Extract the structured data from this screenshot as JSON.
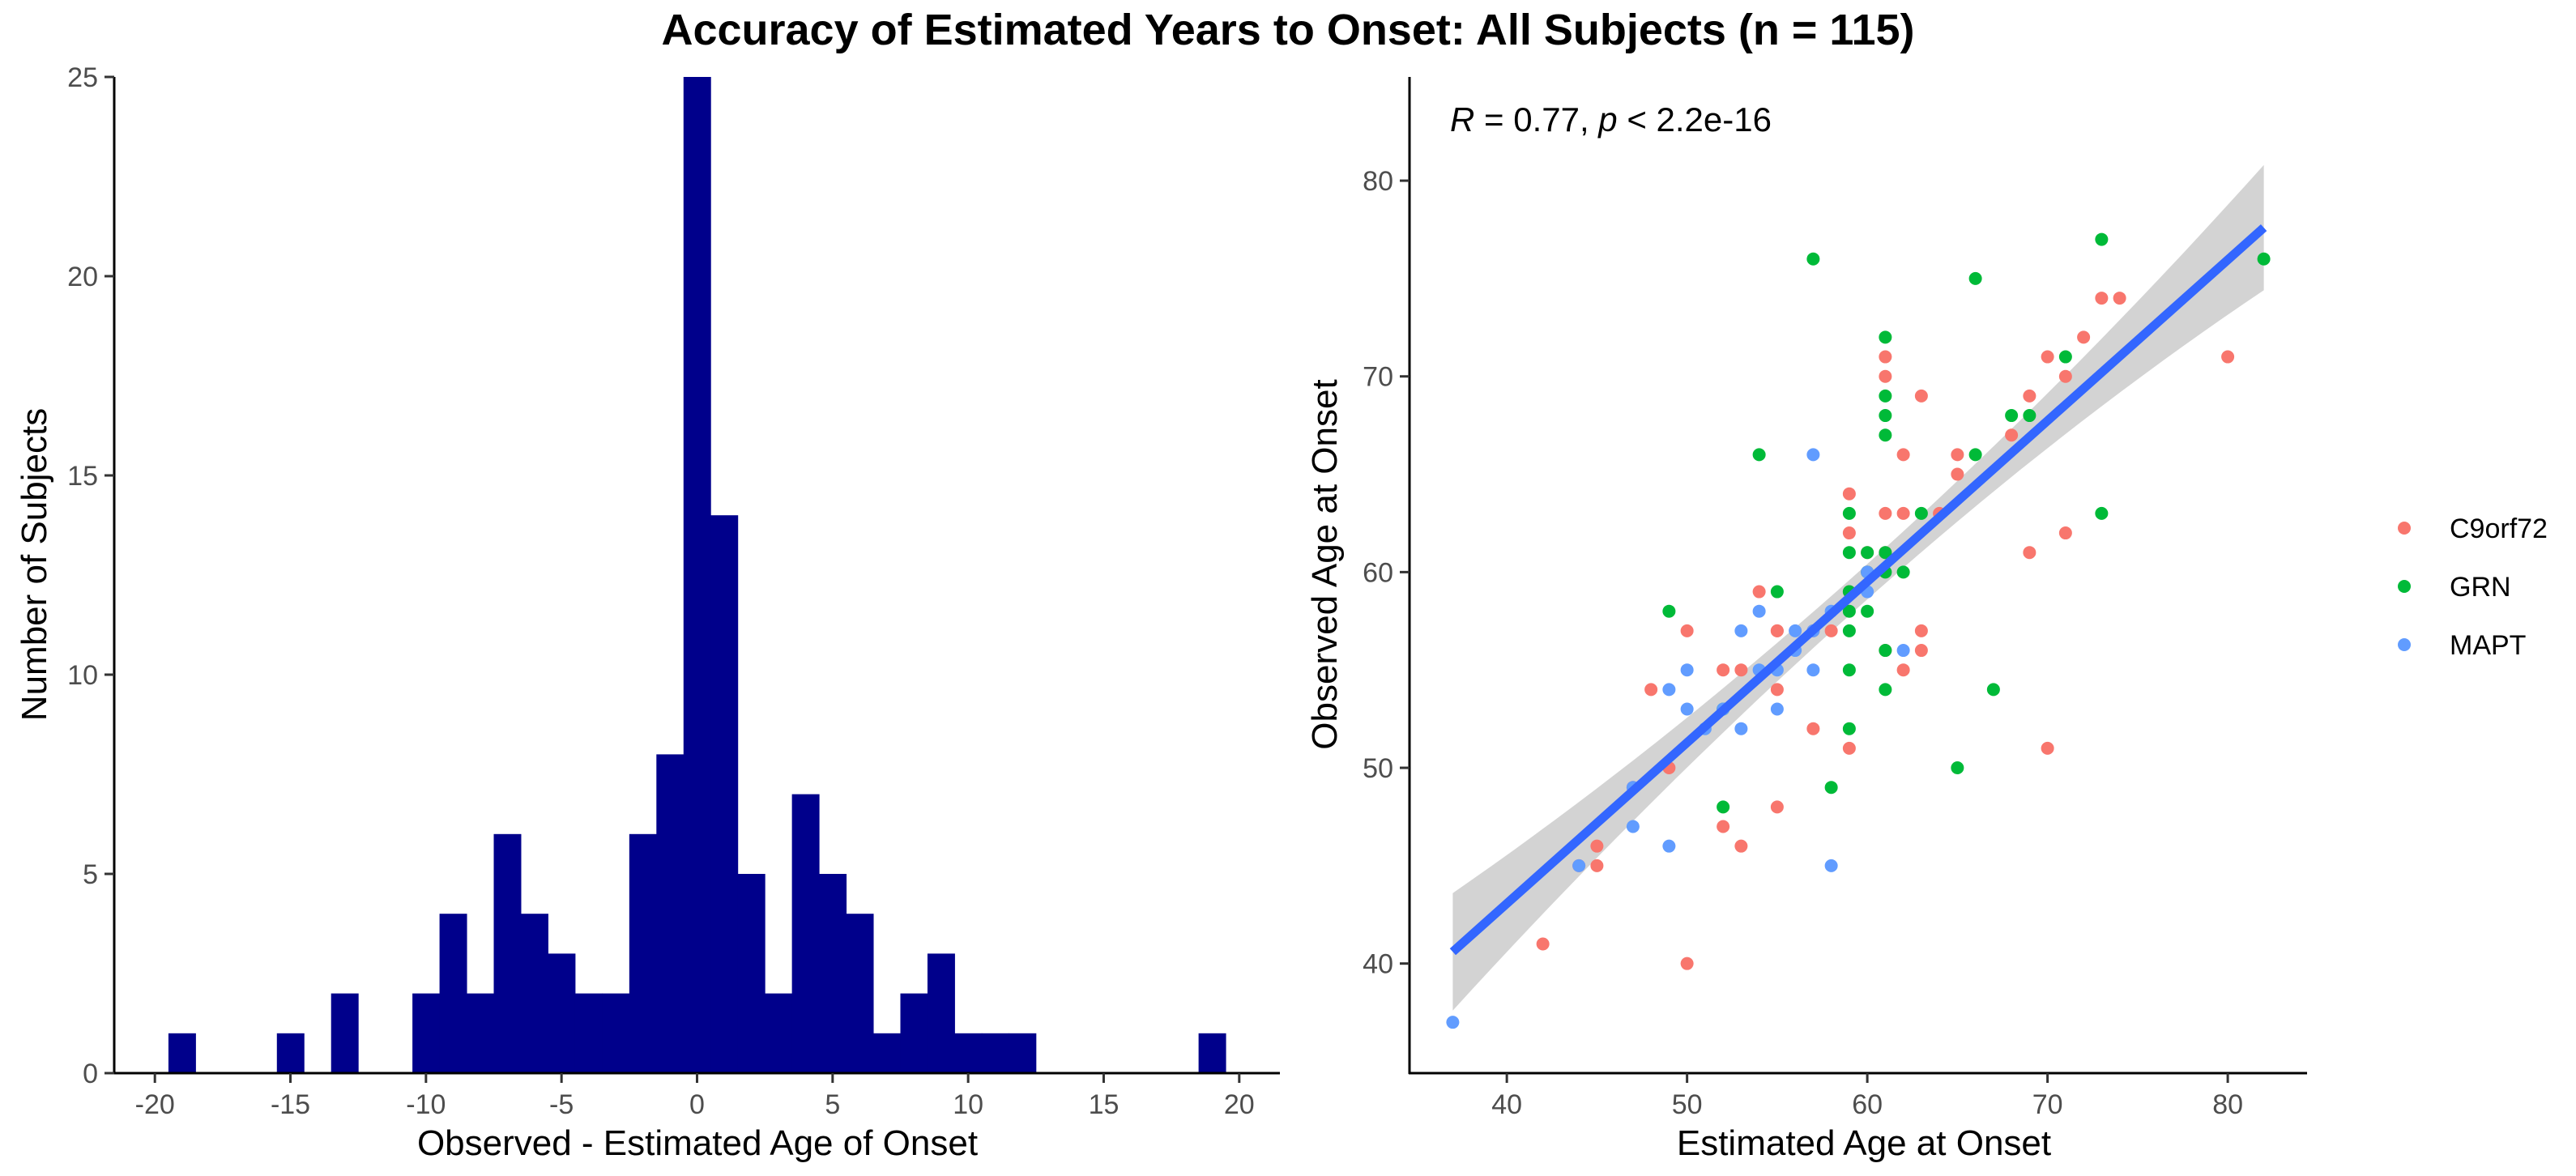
{
  "title": "Accuracy of Estimated Years to Onset: All Subjects (n = 115)",
  "colors": {
    "histogram_fill": "#00008B",
    "C9orf72": "#F8766D",
    "GRN": "#00BA38",
    "MAPT": "#619CFF",
    "fit_line": "#3366FF",
    "confidence_band": "#D3D3D3"
  },
  "chart_data": [
    {
      "type": "bar",
      "subtype": "histogram",
      "xlabel": "Observed - Estimated Age of Onset",
      "ylabel": "Number of Subjects",
      "xlim": [
        -21.5,
        21.5
      ],
      "ylim": [
        0,
        25
      ],
      "xticks": [
        -20,
        -15,
        -10,
        -5,
        0,
        5,
        10,
        15,
        20
      ],
      "yticks": [
        0,
        5,
        10,
        15,
        20,
        25
      ],
      "bin_width": 1,
      "bins": [
        {
          "x": -19,
          "count": 1
        },
        {
          "x": -15,
          "count": 1
        },
        {
          "x": -13,
          "count": 2
        },
        {
          "x": -10,
          "count": 2
        },
        {
          "x": -9,
          "count": 4
        },
        {
          "x": -8,
          "count": 2
        },
        {
          "x": -7,
          "count": 6
        },
        {
          "x": -6,
          "count": 4
        },
        {
          "x": -5,
          "count": 3
        },
        {
          "x": -4,
          "count": 2
        },
        {
          "x": -3,
          "count": 2
        },
        {
          "x": -2,
          "count": 6
        },
        {
          "x": -1,
          "count": 8
        },
        {
          "x": 0,
          "count": 25
        },
        {
          "x": 1,
          "count": 14
        },
        {
          "x": 2,
          "count": 5
        },
        {
          "x": 3,
          "count": 2
        },
        {
          "x": 4,
          "count": 7
        },
        {
          "x": 5,
          "count": 5
        },
        {
          "x": 6,
          "count": 4
        },
        {
          "x": 7,
          "count": 1
        },
        {
          "x": 8,
          "count": 2
        },
        {
          "x": 9,
          "count": 3
        },
        {
          "x": 10,
          "count": 1
        },
        {
          "x": 11,
          "count": 1
        },
        {
          "x": 12,
          "count": 1
        },
        {
          "x": 19,
          "count": 1
        }
      ],
      "grid": false
    },
    {
      "type": "scatter",
      "xlabel": "Estimated Age at Onset",
      "ylabel": "Observed Age at Onset",
      "xlim": [
        34.6,
        84.4
      ],
      "ylim": [
        34.4,
        85.3
      ],
      "xticks": [
        40,
        50,
        60,
        70,
        80
      ],
      "yticks": [
        40,
        50,
        60,
        70,
        80
      ],
      "annotation": {
        "r_symbol": "R",
        "r_text": " = 0.77, ",
        "p_symbol": "p",
        "p_text": " < 2.2e-16"
      },
      "legend": {
        "position": "right",
        "entries": [
          "C9orf72",
          "GRN",
          "MAPT"
        ]
      },
      "grid": false,
      "fit": {
        "method": "linear",
        "x": [
          37,
          82
        ],
        "y": [
          40.6,
          77.6
        ],
        "ci_halfwidth": [
          3.0,
          3.2
        ]
      },
      "series": [
        {
          "name": "C9orf72",
          "points": [
            [
              42,
              41
            ],
            [
              44,
              45
            ],
            [
              45,
              45
            ],
            [
              45,
              46
            ],
            [
              47,
              49
            ],
            [
              48,
              54
            ],
            [
              49,
              50
            ],
            [
              50,
              40
            ],
            [
              50,
              57
            ],
            [
              52,
              47
            ],
            [
              52,
              55
            ],
            [
              53,
              46
            ],
            [
              53,
              55
            ],
            [
              54,
              59
            ],
            [
              55,
              48
            ],
            [
              55,
              54
            ],
            [
              55,
              57
            ],
            [
              57,
              52
            ],
            [
              57,
              57
            ],
            [
              58,
              57
            ],
            [
              59,
              51
            ],
            [
              59,
              59
            ],
            [
              59,
              64
            ],
            [
              60,
              61
            ],
            [
              61,
              56
            ],
            [
              61,
              61
            ],
            [
              61,
              63
            ],
            [
              61,
              71
            ],
            [
              61,
              70
            ],
            [
              62,
              55
            ],
            [
              62,
              66
            ],
            [
              62,
              63
            ],
            [
              63,
              56
            ],
            [
              63,
              57
            ],
            [
              63,
              69
            ],
            [
              65,
              65
            ],
            [
              65,
              66
            ],
            [
              68,
              67
            ],
            [
              69,
              61
            ],
            [
              69,
              69
            ],
            [
              70,
              51
            ],
            [
              70,
              71
            ],
            [
              71,
              62
            ],
            [
              71,
              70
            ],
            [
              72,
              72
            ],
            [
              73,
              74
            ],
            [
              74,
              74
            ],
            [
              80,
              71
            ],
            [
              55,
              57
            ],
            [
              60,
              60
            ],
            [
              59,
              62
            ],
            [
              64,
              63
            ]
          ]
        },
        {
          "name": "GRN",
          "points": [
            [
              49,
              58
            ],
            [
              52,
              48
            ],
            [
              52,
              53
            ],
            [
              54,
              66
            ],
            [
              55,
              59
            ],
            [
              57,
              76
            ],
            [
              58,
              49
            ],
            [
              59,
              52
            ],
            [
              59,
              55
            ],
            [
              59,
              58
            ],
            [
              59,
              59
            ],
            [
              59,
              61
            ],
            [
              59,
              63
            ],
            [
              60,
              58
            ],
            [
              60,
              60
            ],
            [
              61,
              54
            ],
            [
              61,
              56
            ],
            [
              61,
              60
            ],
            [
              61,
              67
            ],
            [
              61,
              68
            ],
            [
              61,
              69
            ],
            [
              61,
              72
            ],
            [
              62,
              60
            ],
            [
              63,
              63
            ],
            [
              65,
              50
            ],
            [
              66,
              66
            ],
            [
              66,
              75
            ],
            [
              67,
              54
            ],
            [
              68,
              68
            ],
            [
              69,
              68
            ],
            [
              71,
              71
            ],
            [
              73,
              63
            ],
            [
              73,
              77
            ],
            [
              82,
              76
            ],
            [
              60,
              61
            ],
            [
              59,
              57
            ],
            [
              61,
              61
            ]
          ]
        },
        {
          "name": "MAPT",
          "points": [
            [
              37,
              37
            ],
            [
              44,
              45
            ],
            [
              47,
              47
            ],
            [
              49,
              46
            ],
            [
              49,
              54
            ],
            [
              50,
              53
            ],
            [
              50,
              55
            ],
            [
              51,
              52
            ],
            [
              53,
              52
            ],
            [
              53,
              57
            ],
            [
              54,
              58
            ],
            [
              55,
              53
            ],
            [
              56,
              56
            ],
            [
              57,
              55
            ],
            [
              57,
              66
            ],
            [
              58,
              45
            ],
            [
              60,
              60
            ],
            [
              62,
              56
            ],
            [
              47,
              49
            ],
            [
              55,
              55
            ],
            [
              52,
              53
            ],
            [
              56,
              57
            ],
            [
              58,
              58
            ],
            [
              60,
              59
            ],
            [
              54,
              55
            ],
            [
              57,
              57
            ]
          ]
        }
      ]
    }
  ]
}
